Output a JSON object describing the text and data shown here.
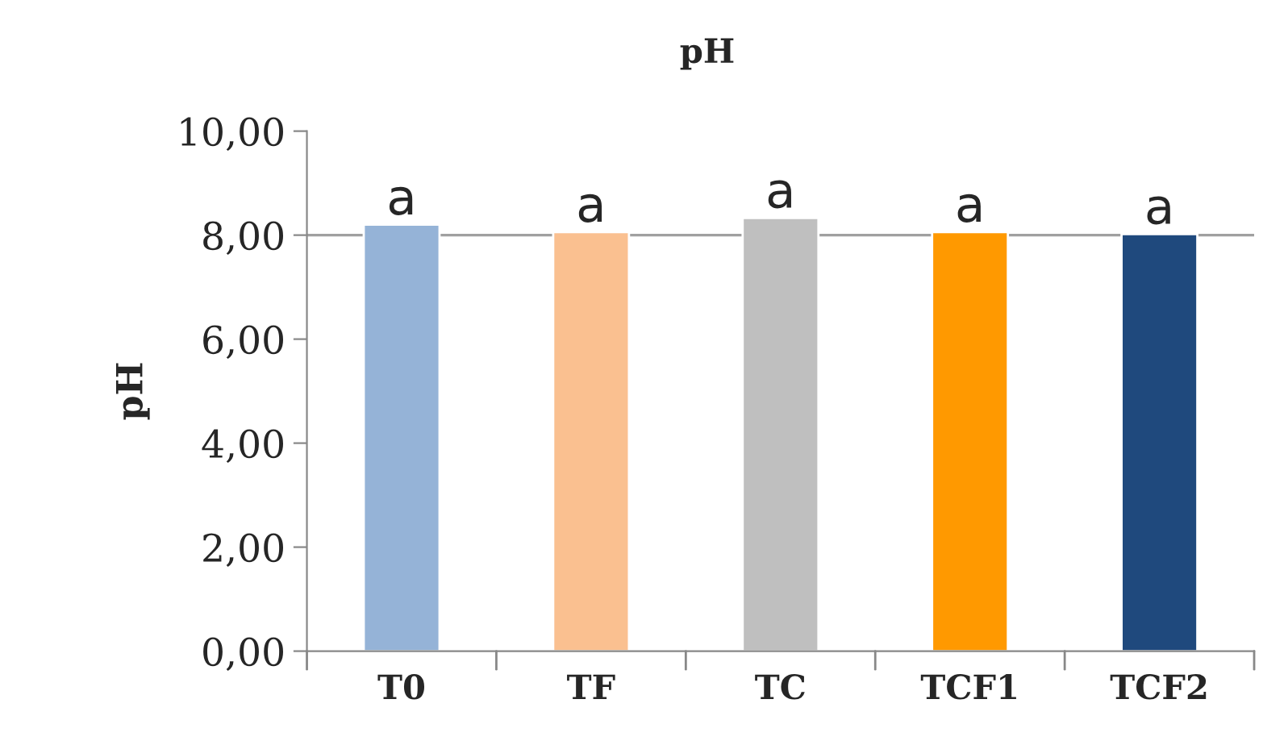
{
  "chart_data": {
    "type": "bar",
    "title": "pH",
    "ylabel": "pH",
    "categories": [
      "T0",
      "TF",
      "TC",
      "TCF1",
      "TCF2"
    ],
    "values": [
      8.2,
      8.06,
      8.33,
      8.06,
      8.02
    ],
    "colors": [
      "#95b3d7",
      "#fac090",
      "#bfbfbf",
      "#ff9900",
      "#1f497d"
    ],
    "value_labels": [
      "a",
      "a",
      "a",
      "a",
      "a"
    ],
    "ylim": [
      0,
      10
    ],
    "yticks": [
      {
        "value": 0,
        "label": "0,00"
      },
      {
        "value": 2,
        "label": "2,00"
      },
      {
        "value": 4,
        "label": "4,00"
      },
      {
        "value": 6,
        "label": "6,00"
      },
      {
        "value": 8,
        "label": "8,00"
      },
      {
        "value": 10,
        "label": "10,00"
      }
    ],
    "ref_lines": [
      {
        "axis": "y",
        "value": 8,
        "color": "#a0a0a0"
      }
    ],
    "grid": false,
    "legend": false
  }
}
